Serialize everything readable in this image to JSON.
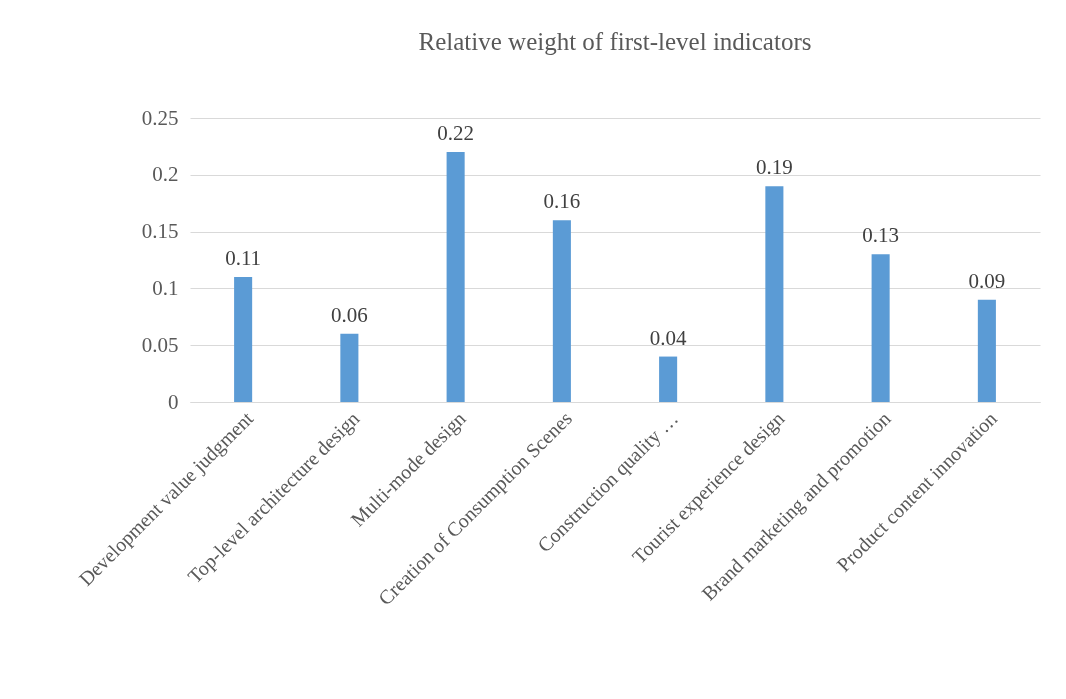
{
  "chart_data": {
    "type": "bar",
    "title": "Relative weight of first-level indicators",
    "categories": [
      "Development value judgment",
      "Top-level architecture design",
      "Multi-mode design",
      "Creation of Consumption Scenes",
      "Construction quality …",
      "Tourist experience design",
      "Brand marketing and promotion",
      "Product content innovation"
    ],
    "values": [
      0.11,
      0.06,
      0.22,
      0.16,
      0.04,
      0.19,
      0.13,
      0.09
    ],
    "color": "#5b9bd5",
    "ylim": [
      0,
      0.25
    ],
    "yticks": [
      0,
      0.05,
      0.1,
      0.15,
      0.2,
      0.25
    ],
    "grid": "y",
    "data_labels": true
  }
}
